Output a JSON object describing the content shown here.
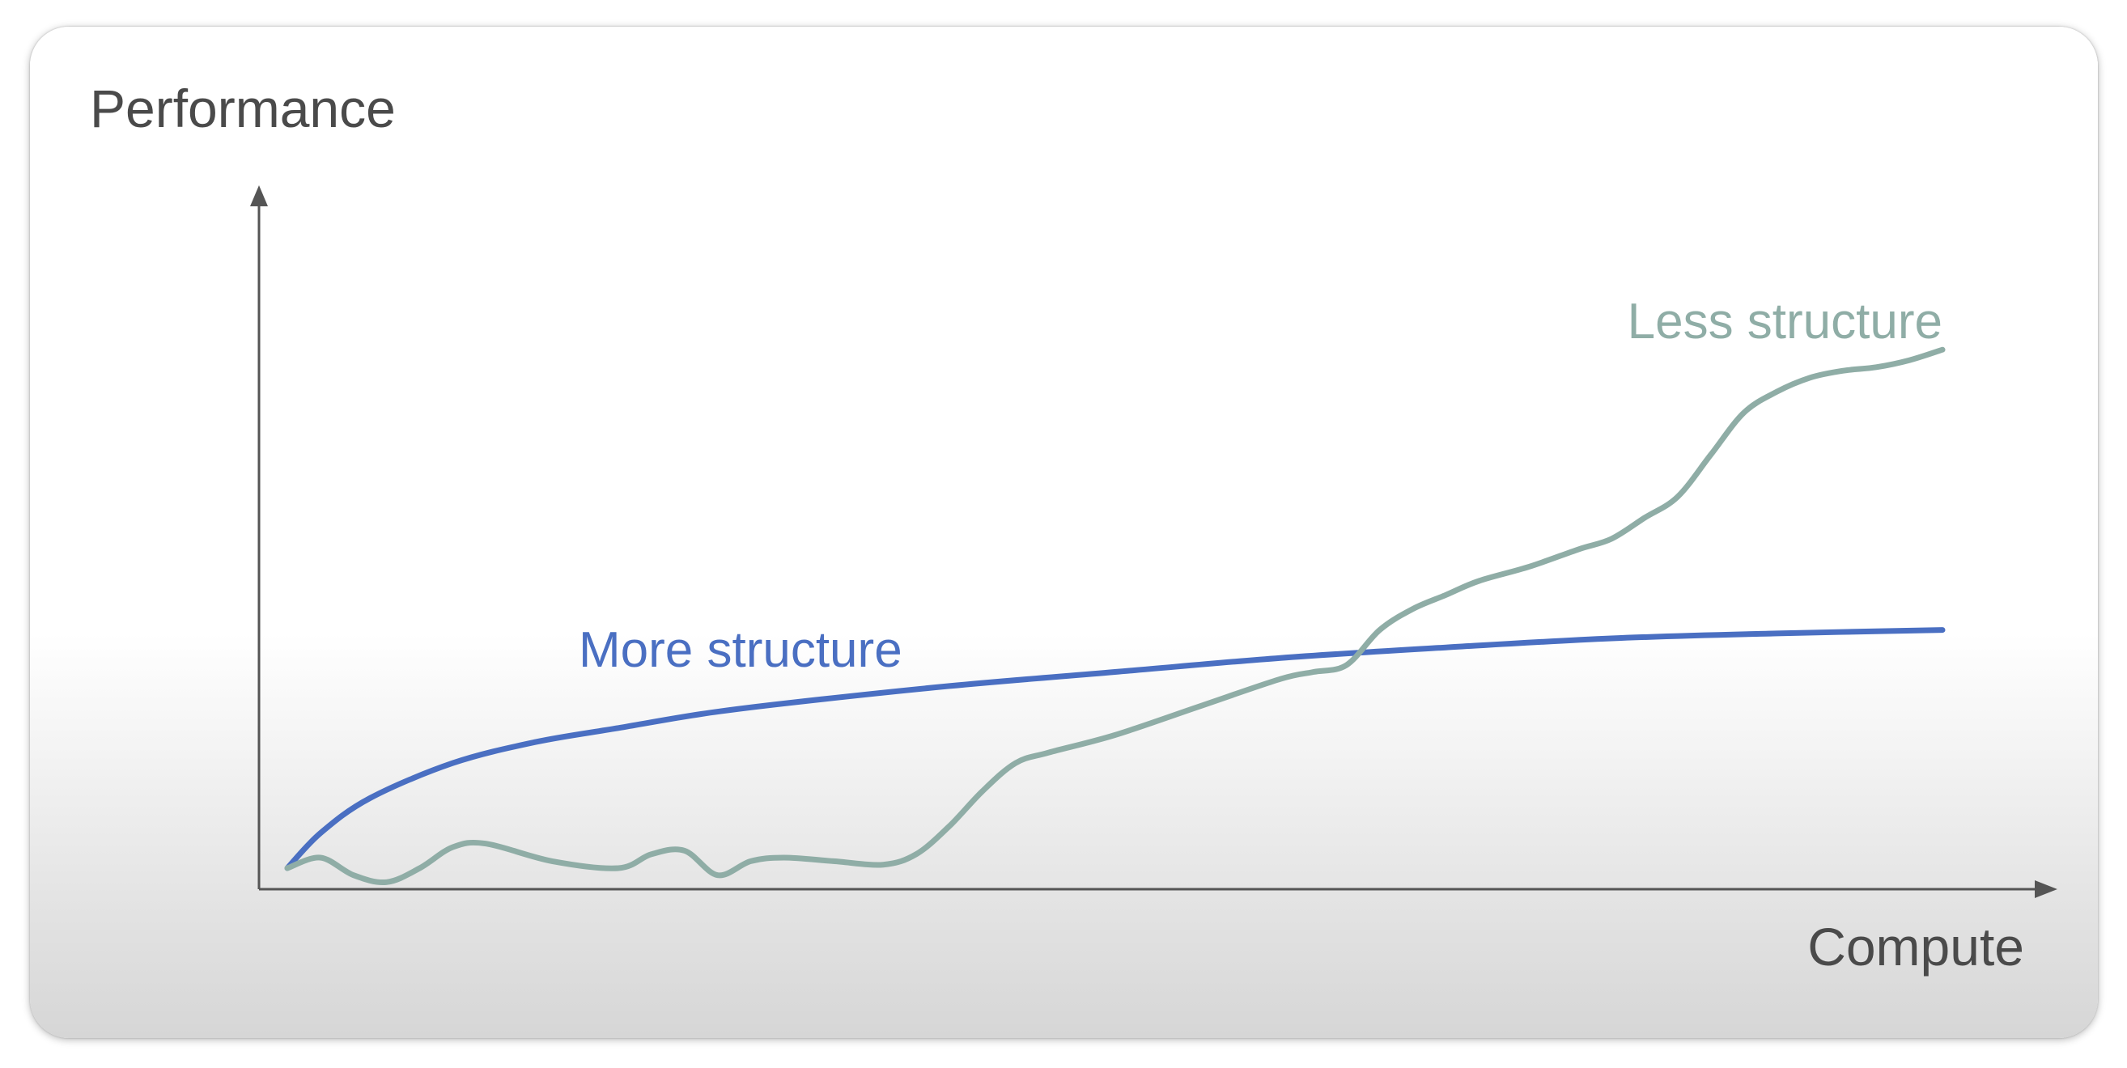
{
  "chart_data": {
    "type": "line",
    "title": "",
    "xlabel": "Compute",
    "ylabel": "Performance",
    "x_ticks": false,
    "y_ticks": false,
    "grid": false,
    "legend": "inline labels near curves",
    "xlim": [
      0,
      100
    ],
    "ylim": [
      0,
      100
    ],
    "series": [
      {
        "name": "More structure",
        "color": "#4a6fc2",
        "x": [
          0,
          2,
          5,
          10,
          15,
          20,
          25,
          30,
          40,
          50,
          60,
          70,
          80,
          90,
          100
        ],
        "y": [
          3,
          8,
          13,
          18,
          21,
          23,
          25,
          26.5,
          29,
          31,
          33,
          34.5,
          35.8,
          36.5,
          37
        ]
      },
      {
        "name": "Less structure",
        "color": "#8fada6",
        "x": [
          0,
          2,
          4,
          6,
          8,
          10,
          12,
          16,
          20,
          22,
          24,
          26,
          28,
          30,
          33,
          36,
          38,
          40,
          42,
          44,
          46,
          50,
          55,
          60,
          62,
          64,
          66,
          68,
          70,
          72,
          75,
          78,
          80,
          82,
          84,
          86,
          88,
          90,
          92,
          94,
          96,
          98,
          100
        ],
        "y": [
          3,
          4.5,
          2,
          1,
          3,
          6,
          6.5,
          4,
          3,
          5,
          5.5,
          2,
          4,
          4.5,
          4,
          3.5,
          5,
          9,
          14,
          18,
          19.5,
          22,
          26,
          30,
          31,
          32,
          37,
          40,
          42,
          44,
          46,
          48.5,
          50,
          53,
          56,
          62,
          68,
          71,
          73,
          74,
          74.5,
          75.5,
          77
        ]
      }
    ]
  }
}
